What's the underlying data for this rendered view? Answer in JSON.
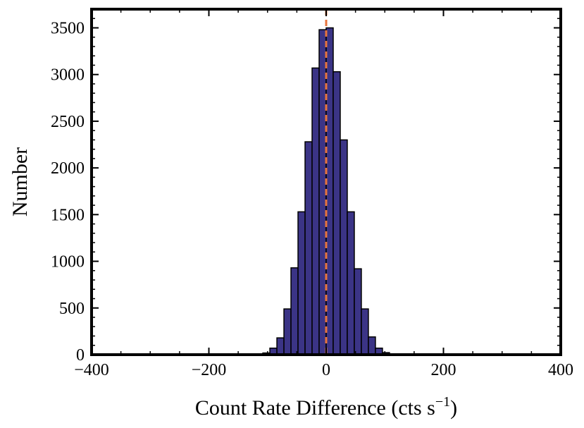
{
  "chart_data": {
    "type": "histogram",
    "title": "",
    "xlabel": "Count Rate Difference (cts s",
    "xlabel_superscript": "−1",
    "xlabel_close": ")",
    "ylabel": "Number",
    "xlim": [
      -400,
      400
    ],
    "ylim": [
      0,
      3700
    ],
    "xticks": [
      -400,
      -200,
      0,
      200,
      400
    ],
    "xtick_labels": [
      "−400",
      "−200",
      "0",
      "200",
      "400"
    ],
    "yticks": [
      0,
      500,
      1000,
      1500,
      2000,
      2500,
      3000,
      3500
    ],
    "ytick_labels": [
      "0",
      "500",
      "1000",
      "1500",
      "2000",
      "2500",
      "3000",
      "3500"
    ],
    "bin_width": 12,
    "bin_edges_start": -120,
    "counts": [
      5,
      18,
      70,
      180,
      490,
      930,
      1530,
      2280,
      3070,
      3480,
      3500,
      3030,
      2300,
      1530,
      920,
      490,
      190,
      70,
      22,
      5
    ],
    "bar_color": "#3b3486",
    "bar_edge_color": "#000000",
    "reference_line": {
      "x": 0,
      "color": "#e8743b",
      "style": "dashed"
    },
    "grid": false,
    "legend": "none"
  }
}
